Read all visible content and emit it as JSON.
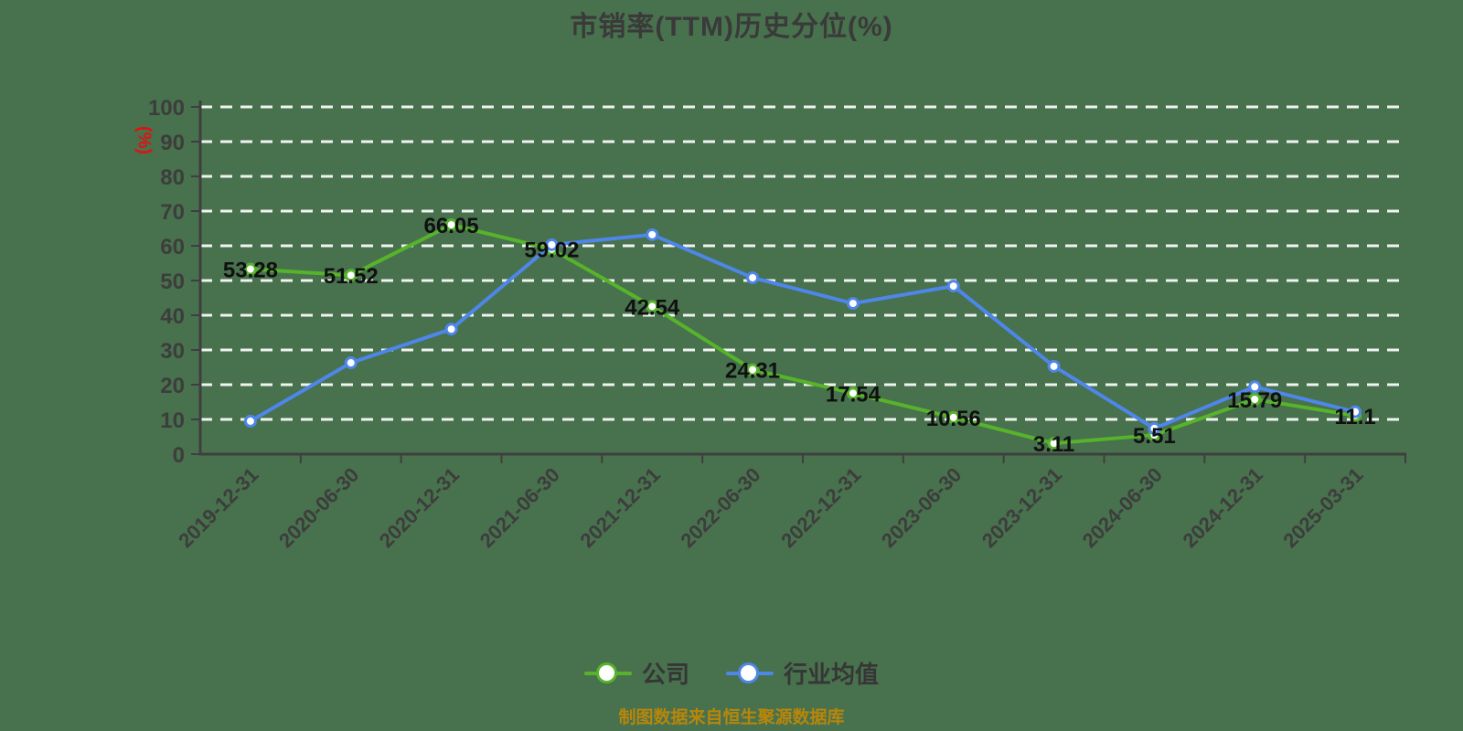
{
  "title": "市销率(TTM)历史分位(%)",
  "y_axis_unit": "(%)",
  "footer": "制图数据来自恒生聚源数据库",
  "legend": [
    {
      "label": "公司",
      "color": "#57b32c"
    },
    {
      "label": "行业均值",
      "color": "#4e86e9"
    }
  ],
  "theme": {
    "background": "#48714D",
    "grid": "rgba(255,255,255,0.92)",
    "axis": "#3f3f3f",
    "marker_fill": "#ffffff",
    "value_label": "#101010",
    "tick_label": "#3d3d3d",
    "title_color": "#3a3a3a",
    "unit_color": "#e01212",
    "footer_color": "#b8860b"
  },
  "chart_data": {
    "type": "line",
    "title": "市销率(TTM)历史分位(%)",
    "xlabel": "",
    "ylabel": "(%)",
    "ylim": [
      0,
      100
    ],
    "y_ticks": [
      0,
      10,
      20,
      30,
      40,
      50,
      60,
      70,
      80,
      90,
      100
    ],
    "grid": "horizontal-white-dashed",
    "legend_position": "bottom-center",
    "categories": [
      "2019-12-31",
      "2020-06-30",
      "2020-12-31",
      "2021-06-30",
      "2021-12-31",
      "2022-06-30",
      "2022-12-31",
      "2023-06-30",
      "2023-12-31",
      "2024-06-30",
      "2024-12-31",
      "2025-03-31"
    ],
    "series": [
      {
        "name": "公司",
        "color": "#57b32c",
        "values": [
          53.28,
          51.52,
          66.05,
          59.02,
          42.54,
          24.31,
          17.54,
          10.56,
          3.11,
          5.51,
          15.79,
          11.1
        ],
        "labels": [
          "53.28",
          "51.52",
          "66.05",
          "59.02",
          "42.54",
          "24.31",
          "17.54",
          "10.56",
          "3.11",
          "5.51",
          "15.79",
          "11.1"
        ]
      },
      {
        "name": "行业均值",
        "color": "#4e86e9",
        "values": [
          9.5,
          26.3,
          36,
          60.3,
          63.2,
          50.8,
          43.4,
          48.4,
          25.3,
          7.4,
          19.4,
          12.2
        ]
      }
    ]
  }
}
